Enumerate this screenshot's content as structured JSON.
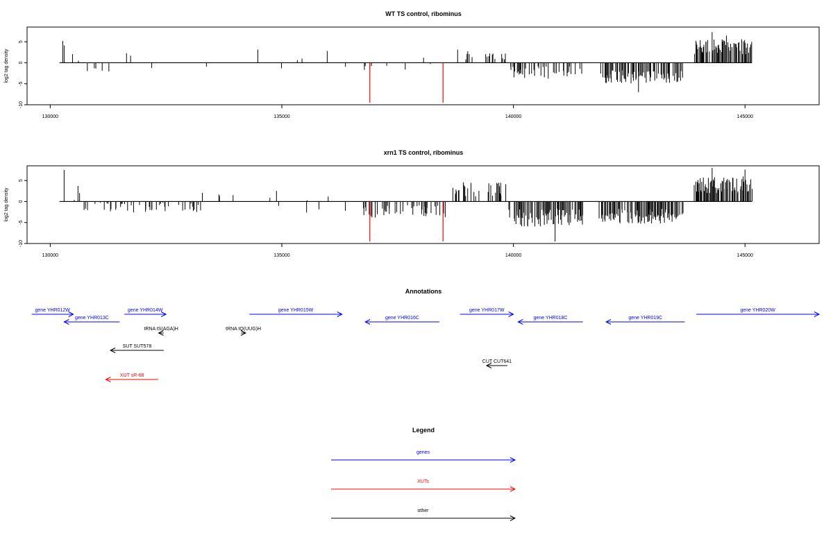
{
  "chart_data": [
    {
      "type": "bar",
      "title": "WT TS control, ribominus",
      "xlabel": "",
      "ylabel": "log2 tag density",
      "xlim": [
        129500,
        146600
      ],
      "ylim": [
        -10,
        8.5
      ],
      "xticks": [
        130000,
        135000,
        140000,
        145000
      ],
      "yticks": [
        -10,
        -5,
        0,
        5
      ],
      "baseline": [
        130200,
        145150
      ],
      "grid": false,
      "segments": [
        {
          "start": 130200,
          "end": 130650,
          "mean": 2.2,
          "amp": 2.5,
          "density": 0.18,
          "sign": 1
        },
        {
          "start": 130650,
          "end": 131200,
          "mean": -1.8,
          "amp": 1.0,
          "density": 0.12,
          "sign": -1
        },
        {
          "start": 131200,
          "end": 136750,
          "mean": 1.6,
          "amp": 1.6,
          "density": 0.03,
          "sign": 0
        },
        {
          "start": 136750,
          "end": 138000,
          "mean": -1.0,
          "amp": 0.8,
          "density": 0.06,
          "sign": -1
        },
        {
          "start": 138000,
          "end": 139350,
          "mean": 1.2,
          "amp": 1.2,
          "density": 0.05,
          "sign": 0
        },
        {
          "start": 138650,
          "end": 139850,
          "mean": 2.0,
          "amp": 1.2,
          "density": 0.15,
          "sign": 1
        },
        {
          "start": 139900,
          "end": 141500,
          "mean": -2.3,
          "amp": 1.5,
          "density": 0.4,
          "sign": -1
        },
        {
          "start": 141850,
          "end": 143650,
          "mean": -3.4,
          "amp": 1.6,
          "density": 0.6,
          "sign": -1
        },
        {
          "start": 143900,
          "end": 145150,
          "mean": 3.8,
          "amp": 1.8,
          "density": 0.8,
          "sign": 1
        }
      ],
      "highlights": [
        {
          "x": 136900,
          "value": -9.5,
          "color": "#ff0000"
        },
        {
          "x": 138480,
          "value": -9.5,
          "color": "#ff0000"
        }
      ],
      "spikes": [
        {
          "x": 130270,
          "value": 5.2
        },
        {
          "x": 135980,
          "value": 2.8
        },
        {
          "x": 144290,
          "value": 7.3
        },
        {
          "x": 144600,
          "value": 6.5
        },
        {
          "x": 142700,
          "value": -7.0
        }
      ]
    },
    {
      "type": "bar",
      "title": "xrn1 TS control, ribominus",
      "xlabel": "",
      "ylabel": "log2 tag density",
      "xlim": [
        129500,
        146600
      ],
      "ylim": [
        -10,
        8.5
      ],
      "xticks": [
        130000,
        135000,
        140000,
        145000
      ],
      "yticks": [
        -10,
        -5,
        0,
        5
      ],
      "baseline": [
        130200,
        145150
      ],
      "grid": false,
      "segments": [
        {
          "start": 130200,
          "end": 130650,
          "mean": 2.6,
          "amp": 2.3,
          "density": 0.25,
          "sign": 1
        },
        {
          "start": 130650,
          "end": 133200,
          "mean": -1.4,
          "amp": 1.2,
          "density": 0.18,
          "sign": -1
        },
        {
          "start": 133200,
          "end": 136700,
          "mean": 1.4,
          "amp": 1.5,
          "density": 0.05,
          "sign": 0
        },
        {
          "start": 136750,
          "end": 138550,
          "mean": -2.4,
          "amp": 1.5,
          "density": 0.4,
          "sign": -1
        },
        {
          "start": 138650,
          "end": 139850,
          "mean": 2.8,
          "amp": 1.8,
          "density": 0.35,
          "sign": 1
        },
        {
          "start": 139900,
          "end": 141500,
          "mean": -3.8,
          "amp": 2.2,
          "density": 0.7,
          "sign": -1
        },
        {
          "start": 141850,
          "end": 143650,
          "mean": -3.5,
          "amp": 1.8,
          "density": 0.7,
          "sign": -1
        },
        {
          "start": 143900,
          "end": 145150,
          "mean": 4.0,
          "amp": 2.0,
          "density": 0.85,
          "sign": 1
        }
      ],
      "highlights": [
        {
          "x": 136900,
          "value": -9.5,
          "color": "#ff0000"
        },
        {
          "x": 138480,
          "value": -9.5,
          "color": "#ff0000"
        }
      ],
      "spikes": [
        {
          "x": 130300,
          "value": 7.5
        },
        {
          "x": 144290,
          "value": 8.0
        },
        {
          "x": 140900,
          "value": -9.5
        },
        {
          "x": 145000,
          "value": 7.6
        }
      ]
    }
  ],
  "annotations": {
    "title": "Annotations",
    "xlim": [
      129500,
      146600
    ],
    "features": [
      {
        "label": "gene YHR012W",
        "start": 129600,
        "end": 130500,
        "dir": 1,
        "row": 0,
        "category": "gene"
      },
      {
        "label": "gene YHR013C",
        "start": 130300,
        "end": 131500,
        "dir": -1,
        "row": 1,
        "category": "gene"
      },
      {
        "label": "gene YHR014W",
        "start": 131600,
        "end": 132500,
        "dir": 1,
        "row": 0,
        "category": "gene"
      },
      {
        "label": "gene YHR015W",
        "start": 134300,
        "end": 136300,
        "dir": 1,
        "row": 0,
        "category": "gene"
      },
      {
        "label": "gene YHR016C",
        "start": 136800,
        "end": 138400,
        "dir": -1,
        "row": 1,
        "category": "gene"
      },
      {
        "label": "gene YHR017W",
        "start": 138850,
        "end": 140000,
        "dir": 1,
        "row": 0,
        "category": "gene"
      },
      {
        "label": "gene YHR018C",
        "start": 140100,
        "end": 141500,
        "dir": -1,
        "row": 1,
        "category": "gene"
      },
      {
        "label": "gene YHR019C",
        "start": 142000,
        "end": 143700,
        "dir": -1,
        "row": 1,
        "category": "gene"
      },
      {
        "label": "gene YHR020W",
        "start": 143950,
        "end": 146600,
        "dir": 1,
        "row": 0,
        "category": "gene"
      },
      {
        "label": "tRNA tS(AGA)H",
        "start": 132340,
        "end": 132450,
        "dir": -1,
        "row": 2,
        "category": "other"
      },
      {
        "label": "tRNA tQ(UUG)H",
        "start": 134120,
        "end": 134220,
        "dir": 1,
        "row": 2,
        "category": "other"
      },
      {
        "label": "SUT SUT578",
        "start": 131300,
        "end": 132450,
        "dir": -1,
        "row": 3,
        "category": "other"
      },
      {
        "label": "CUT CUT641",
        "start": 139420,
        "end": 139870,
        "dir": -1,
        "row": 4,
        "category": "other"
      },
      {
        "label": "XUT sR-68",
        "start": 131200,
        "end": 132330,
        "dir": -1,
        "row": 5,
        "category": "xut"
      }
    ]
  },
  "legend": {
    "title": "Legend",
    "items": [
      {
        "label": "genes",
        "color": "#0000ff"
      },
      {
        "label": "XUTs",
        "color": "#ff0000"
      },
      {
        "label": "other",
        "color": "#000000"
      }
    ]
  },
  "colors": {
    "gene": "#0000ff",
    "xut": "#ff0000",
    "other": "#000000",
    "signal": "#000000",
    "highlight": "#ff0000"
  }
}
